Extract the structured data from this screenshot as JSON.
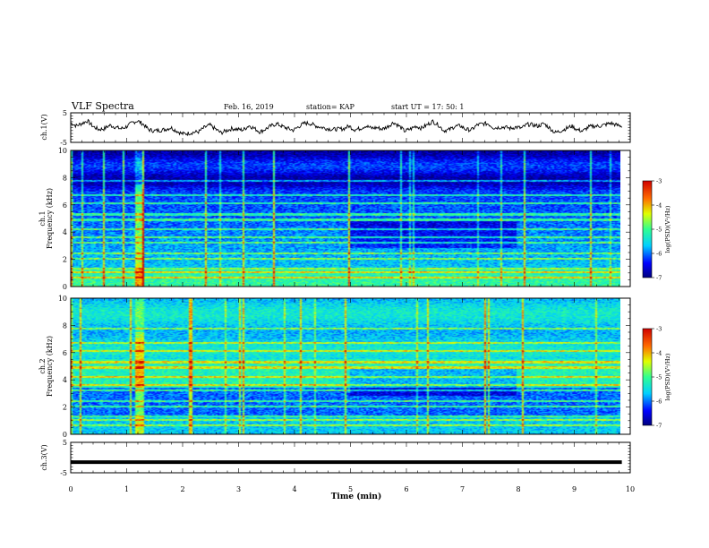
{
  "header": {
    "title": "VLF Spectra",
    "date": "Feb. 16, 2019",
    "station": "station= KAP",
    "start_time": "start  UT =   17: 50: 1"
  },
  "chart_data": [
    {
      "type": "line",
      "panel": "waveform-ch1",
      "ylabel": "ch.1(V)",
      "ylim": [
        -5,
        5
      ],
      "yticks": [
        "5",
        "-5"
      ],
      "x_range_min": [
        0,
        9.85
      ],
      "series": [
        {
          "values": [
            1.6,
            0.6,
            1.4,
            2.3,
            0.4,
            -0.6,
            -0.4,
            0.8,
            0.2,
            -0.4,
            0.3,
            1.6,
            2.3,
            1.2,
            -0.7,
            -1.1,
            -0.9,
            -0.6,
            0.0,
            -1.1,
            -2.1,
            -2.0,
            -1.6,
            -1.4,
            0.0,
            0.9,
            -0.5,
            -1.8,
            -1.0,
            -0.3,
            -0.6,
            -0.8,
            0.7,
            -0.3,
            -1.5,
            -0.5,
            0.6,
            1.3,
            0.4,
            -0.3,
            -0.9,
            0.4,
            1.5,
            1.4,
            0.6,
            0.1,
            -0.3,
            -0.6,
            -0.5,
            -0.4,
            0.5,
            -0.7,
            -0.3,
            0.6,
            -0.2,
            0.0,
            -0.5,
            0.4,
            1.8,
            0.5,
            -1.2,
            -0.5,
            0.5,
            -0.2,
            0.9,
            2.1,
            1.0,
            -1.0,
            -0.7,
            0.4,
            0.6,
            -0.6,
            -0.8,
            0.9,
            1.3,
            1.3,
            -0.1,
            0.1,
            0.2,
            -0.3,
            0.2,
            -0.2,
            1.1,
            0.9,
            0.5,
            1.4,
            -0.1,
            -1.7,
            -1.1,
            -0.3,
            0.5,
            -0.7,
            -1.2,
            0.2,
            0.5,
            0.5,
            1.0,
            1.5,
            0.9,
            0.5
          ]
        }
      ]
    },
    {
      "type": "heatmap",
      "panel": "spectrogram-ch1",
      "ylabel": [
        "ch.1",
        "Frequency (kHz)"
      ],
      "ylim": [
        0,
        10
      ],
      "yticks": [
        "0",
        "2",
        "4",
        "6",
        "8",
        "10"
      ],
      "x_range_min": [
        0,
        9.85
      ],
      "colorbar": {
        "label": "log(PSD)(V²/Hz)",
        "range": [
          -7,
          -3
        ],
        "ticks": [
          "-3",
          "-4",
          "-5",
          "-6",
          "-7"
        ]
      }
    },
    {
      "type": "heatmap",
      "panel": "spectrogram-ch2",
      "ylabel": [
        "ch.2",
        "Frequency (kHz)"
      ],
      "ylim": [
        0,
        10
      ],
      "yticks": [
        "0",
        "2",
        "4",
        "6",
        "8",
        "10"
      ],
      "x_range_min": [
        0,
        9.85
      ],
      "colorbar": {
        "label": "log(PSD)(V²/Hz)",
        "range": [
          -7,
          -3
        ],
        "ticks": [
          "-3",
          "-4",
          "-5",
          "-6",
          "-7"
        ]
      }
    },
    {
      "type": "line",
      "panel": "waveform-ch3",
      "ylabel": "ch.3(V)",
      "ylim": [
        -5,
        5
      ],
      "yticks": [
        "5",
        "-5"
      ],
      "x_range_min": [
        0,
        9.85
      ],
      "series": [
        {
          "values": [
            -1.5,
            -1.5
          ]
        }
      ]
    }
  ],
  "xaxis": {
    "label": "Time (min)",
    "ticks": [
      "0",
      "1",
      "2",
      "3",
      "4",
      "5",
      "6",
      "7",
      "8",
      "9",
      "10"
    ],
    "range": [
      0,
      10
    ]
  }
}
